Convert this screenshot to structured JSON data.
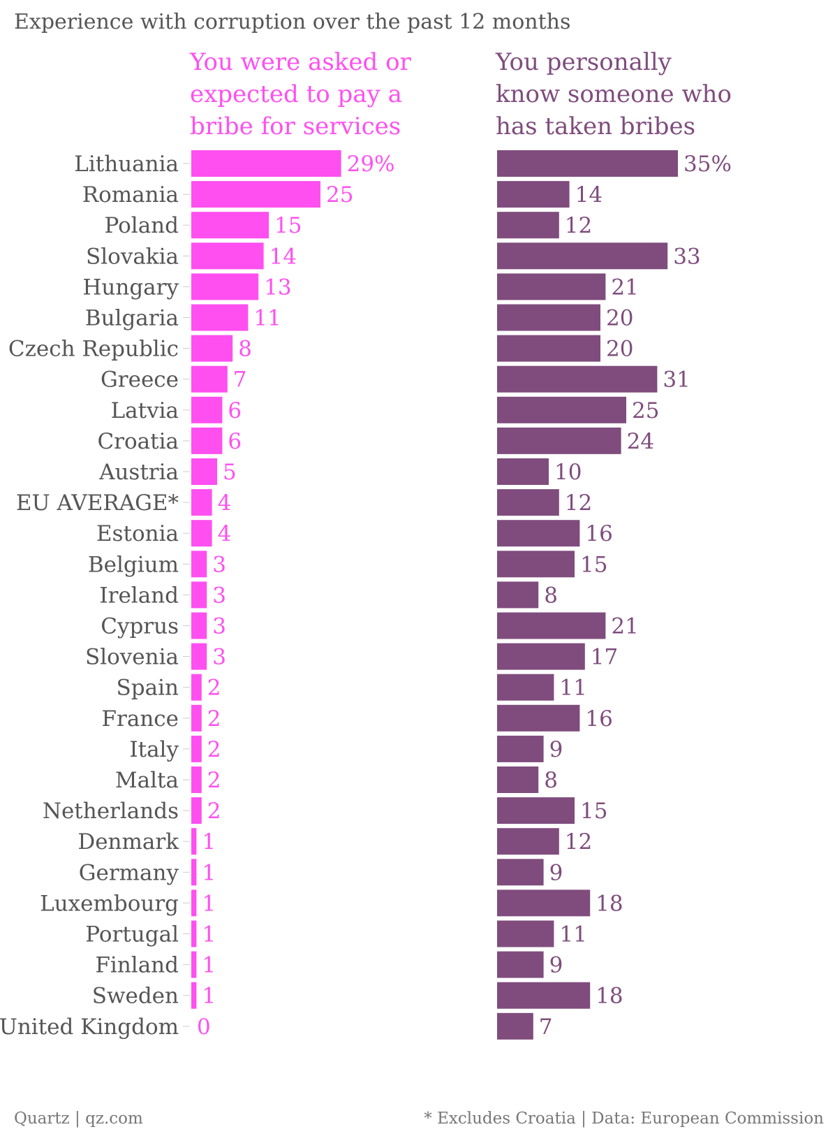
{
  "title": "Experience with corruption over the past 12 months",
  "footer": {
    "left": "Quartz | qz.com",
    "right": "* Excludes Croatia | Data: European Commission"
  },
  "colors": {
    "series1": "#ff4ff0",
    "series2": "#7f4c7d",
    "text": "#555555",
    "tick": "#cccccc"
  },
  "chart_data": {
    "type": "bar",
    "orientation": "horizontal",
    "categories": [
      "Lithuania",
      "Romania",
      "Poland",
      "Slovakia",
      "Hungary",
      "Bulgaria",
      "Czech Republic",
      "Greece",
      "Latvia",
      "Croatia",
      "Austria",
      "EU AVERAGE*",
      "Estonia",
      "Belgium",
      "Ireland",
      "Cyprus",
      "Slovenia",
      "Spain",
      "France",
      "Italy",
      "Malta",
      "Netherlands",
      "Denmark",
      "Germany",
      "Luxembourg",
      "Portugal",
      "Finland",
      "Sweden",
      "United Kingdom"
    ],
    "series": [
      {
        "name": "You were asked or expected to pay a bribe for services",
        "name_lines": [
          "You were asked or",
          "expected to pay a",
          "bribe for services"
        ],
        "values": [
          29,
          25,
          15,
          14,
          13,
          11,
          8,
          7,
          6,
          6,
          5,
          4,
          4,
          3,
          3,
          3,
          3,
          2,
          2,
          2,
          2,
          2,
          1,
          1,
          1,
          1,
          1,
          1,
          0
        ],
        "value_labels": [
          "29%",
          "25",
          "15",
          "14",
          "13",
          "11",
          "8",
          "7",
          "6",
          "6",
          "5",
          "4",
          "4",
          "3",
          "3",
          "3",
          "3",
          "2",
          "2",
          "2",
          "2",
          "2",
          "1",
          "1",
          "1",
          "1",
          "1",
          "1",
          "0"
        ]
      },
      {
        "name": "You personally know someone who has taken bribes",
        "name_lines": [
          "You personally",
          "know someone who",
          "has taken bribes"
        ],
        "values": [
          35,
          14,
          12,
          33,
          21,
          20,
          20,
          31,
          25,
          24,
          10,
          12,
          16,
          15,
          8,
          21,
          17,
          11,
          16,
          9,
          8,
          15,
          12,
          9,
          18,
          11,
          9,
          18,
          7
        ],
        "value_labels": [
          "35%",
          "14",
          "12",
          "33",
          "21",
          "20",
          "20",
          "31",
          "25",
          "24",
          "10",
          "12",
          "16",
          "15",
          "8",
          "21",
          "17",
          "11",
          "16",
          "9",
          "8",
          "15",
          "12",
          "9",
          "18",
          "11",
          "9",
          "18",
          "7"
        ]
      }
    ]
  }
}
